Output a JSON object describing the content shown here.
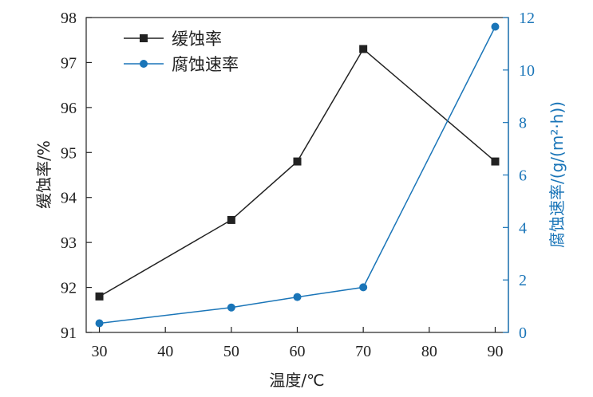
{
  "chart_data": {
    "type": "line",
    "xlabel": "温度/℃",
    "ylabel_left": "缓蚀率/%",
    "ylabel_right": "腐蚀速率/(g/(m²·h))",
    "x_ticks": [
      30,
      40,
      50,
      60,
      70,
      80,
      90
    ],
    "x_range": [
      28,
      92
    ],
    "y_left_ticks": [
      91,
      92,
      93,
      94,
      95,
      96,
      97,
      98
    ],
    "y_left_range": [
      91,
      98
    ],
    "y_right_ticks": [
      0,
      2,
      4,
      6,
      8,
      10,
      12
    ],
    "y_right_range": [
      0,
      12
    ],
    "grid": false,
    "legend_position": "top-left",
    "series": [
      {
        "name": "缓蚀率",
        "axis": "left",
        "marker": "square",
        "color": "#222222",
        "x": [
          30,
          50,
          60,
          70,
          90
        ],
        "y": [
          91.8,
          93.5,
          94.8,
          97.3,
          94.8
        ]
      },
      {
        "name": "腐蚀速率",
        "axis": "right",
        "marker": "circle",
        "color": "#1a75b8",
        "x": [
          30,
          50,
          60,
          70,
          90
        ],
        "y": [
          0.35,
          0.95,
          1.35,
          1.72,
          11.65
        ]
      }
    ]
  }
}
